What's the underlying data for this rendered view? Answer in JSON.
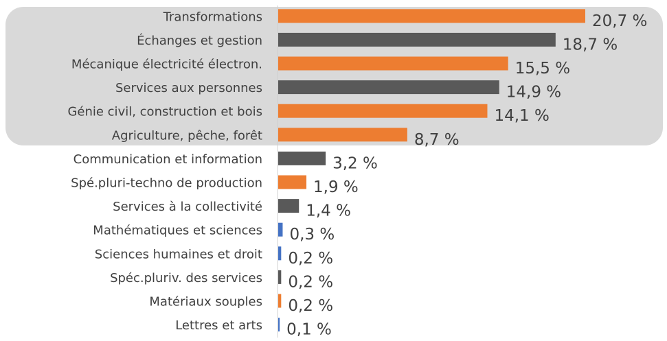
{
  "chart_data": {
    "type": "bar",
    "categories": [
      "Transformations",
      "Échanges et gestion",
      "Mécanique électricité électron.",
      "Services aux personnes",
      "Génie civil, construction et bois",
      "Agriculture, pêche, forêt",
      "Communication et information",
      "Spé.pluri-techno de production",
      "Services à la collectivité",
      "Mathématiques et sciences",
      "Sciences humaines et droit",
      "Spéc.pluriv. des services",
      "Matériaux souples",
      "Lettres et arts"
    ],
    "values": [
      20.7,
      18.7,
      15.5,
      14.9,
      14.1,
      8.7,
      3.2,
      1.9,
      1.4,
      0.3,
      0.2,
      0.2,
      0.2,
      0.1
    ],
    "value_labels": [
      "20,7 %",
      "18,7 %",
      "15,5 %",
      "14,9 %",
      "14,1 %",
      "8,7 %",
      "3,2 %",
      "1,9 %",
      "1,4 %",
      "0,3 %",
      "0,2 %",
      "0,2 %",
      "0,2 %",
      "0,1 %"
    ],
    "colors": [
      "#ED7D31",
      "#595959",
      "#ED7D31",
      "#595959",
      "#ED7D31",
      "#ED7D31",
      "#595959",
      "#ED7D31",
      "#595959",
      "#4472C4",
      "#4472C4",
      "#595959",
      "#ED7D31",
      "#4472C4"
    ],
    "xlim": [
      0,
      20.7
    ]
  }
}
